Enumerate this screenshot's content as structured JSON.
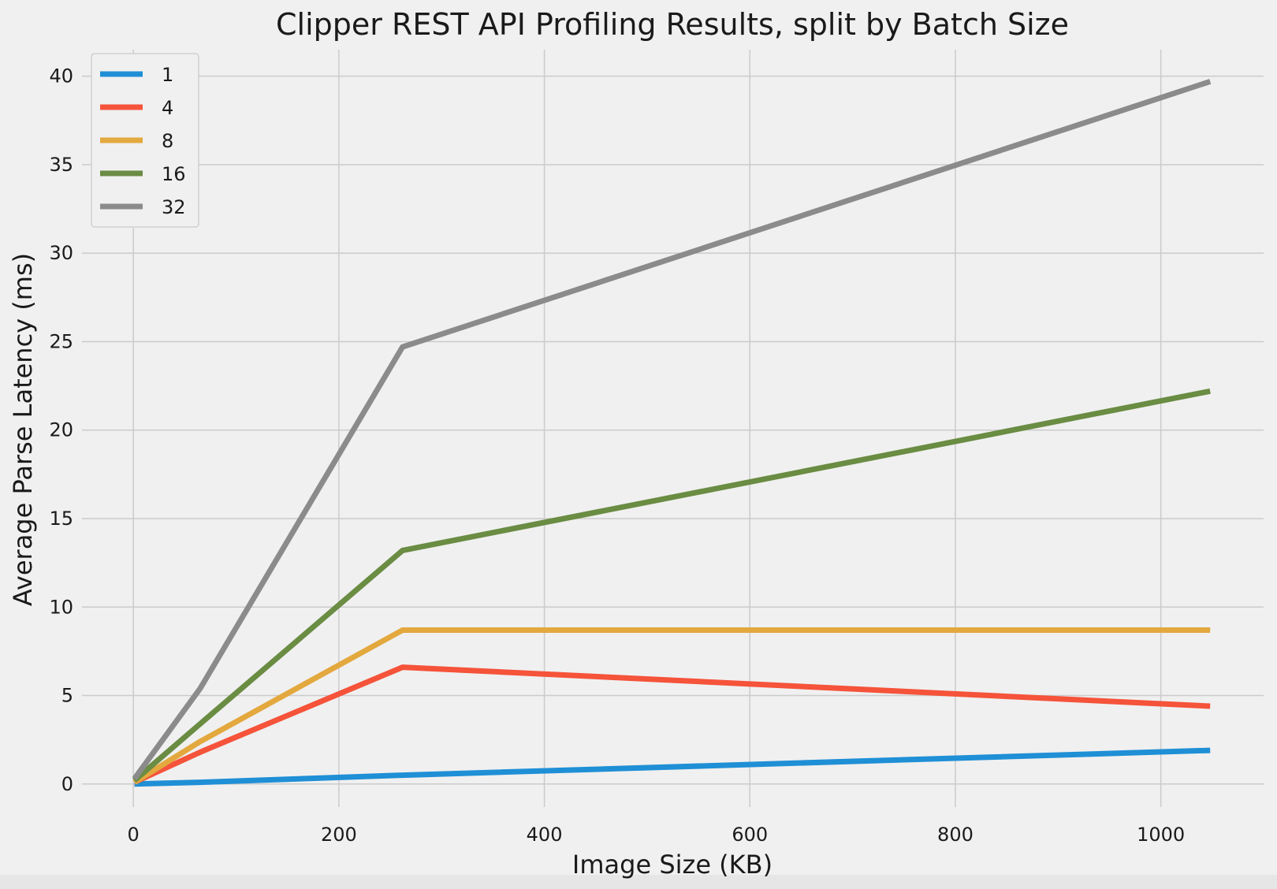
{
  "chart_data": {
    "type": "line",
    "title": "Clipper REST API Profiling Results, split by Batch Size",
    "xlabel": "Image Size (KB)",
    "ylabel": "Average Parse Latency (ms)",
    "xlim": [
      -50,
      1100
    ],
    "ylim": [
      -1.3,
      41.5
    ],
    "xticks": [
      0,
      200,
      400,
      600,
      800,
      1000
    ],
    "yticks": [
      0,
      5,
      10,
      15,
      20,
      25,
      30,
      35,
      40
    ],
    "grid": true,
    "legend_position": "top-left",
    "x": [
      1,
      65,
      262,
      1048
    ],
    "series": [
      {
        "name": "1",
        "color": "#1f8fd6",
        "values": [
          0.0,
          0.1,
          0.5,
          1.9
        ]
      },
      {
        "name": "4",
        "color": "#f5533a",
        "values": [
          0.1,
          1.8,
          6.6,
          4.4
        ]
      },
      {
        "name": "8",
        "color": "#e3a83e",
        "values": [
          0.1,
          2.4,
          8.7,
          8.7
        ]
      },
      {
        "name": "16",
        "color": "#6a8c43",
        "values": [
          0.2,
          3.4,
          13.2,
          22.2
        ]
      },
      {
        "name": "32",
        "color": "#8b8b8b",
        "values": [
          0.3,
          5.4,
          24.7,
          39.7
        ]
      }
    ]
  }
}
